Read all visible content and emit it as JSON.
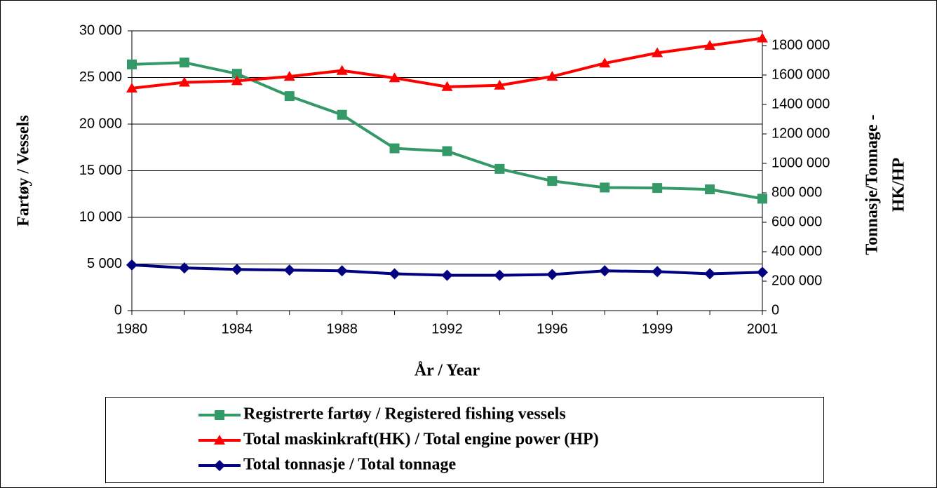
{
  "chart_data": {
    "type": "line",
    "categories": [
      "1980",
      null,
      "1984",
      null,
      "1988",
      null,
      "1992",
      null,
      "1996",
      null,
      "1999",
      null,
      "2001"
    ],
    "xlabel": "År / Year",
    "ylabel": "Fartøy / Vessels",
    "y2label": [
      "Tonnasje/Tonnage -",
      "HK/HP"
    ],
    "ylim": [
      0,
      30000
    ],
    "yticks": [
      {
        "value": 0,
        "label": "0"
      },
      {
        "value": 5000,
        "label": "5 000"
      },
      {
        "value": 10000,
        "label": "10 000"
      },
      {
        "value": 15000,
        "label": "15 000"
      },
      {
        "value": 20000,
        "label": "20 000"
      },
      {
        "value": 25000,
        "label": "25 000"
      },
      {
        "value": 30000,
        "label": "30 000"
      }
    ],
    "y2lim": [
      0,
      1900000
    ],
    "y2ticks": [
      {
        "value": 0,
        "label": "0"
      },
      {
        "value": 200000,
        "label": "200 000"
      },
      {
        "value": 400000,
        "label": "400 000"
      },
      {
        "value": 600000,
        "label": "600 000"
      },
      {
        "value": 800000,
        "label": "800 000"
      },
      {
        "value": 1000000,
        "label": "1000 000"
      },
      {
        "value": 1200000,
        "label": "1200 000"
      },
      {
        "value": 1400000,
        "label": "1400 000"
      },
      {
        "value": 1600000,
        "label": "1600 000"
      },
      {
        "value": 1800000,
        "label": "1800 000"
      }
    ],
    "grid": true,
    "legend": "bottom",
    "series": [
      {
        "name": "Registrerte fartøy / Registered fishing vessels",
        "color": "#339966",
        "marker": "square",
        "values": [
          26400,
          26600,
          25400,
          23000,
          21000,
          17400,
          17100,
          15200,
          13900,
          13200,
          13150,
          13000,
          12000
        ]
      },
      {
        "name": "Total maskinkraft(HK) / Total engine power (HP)",
        "color": "#ff0000",
        "marker": "triangle",
        "axis": "y2",
        "values": [
          1510000,
          1550000,
          1560000,
          1590000,
          1630000,
          1580000,
          1520000,
          1530000,
          1590000,
          1680000,
          1750000,
          1800000,
          1850000
        ]
      },
      {
        "name": "Total tonnasje / Total tonnage",
        "color": "#000080",
        "marker": "diamond",
        "axis": "y2",
        "values": [
          310000,
          290000,
          280000,
          275000,
          270000,
          250000,
          240000,
          240000,
          245000,
          270000,
          265000,
          250000,
          260000
        ]
      }
    ]
  }
}
